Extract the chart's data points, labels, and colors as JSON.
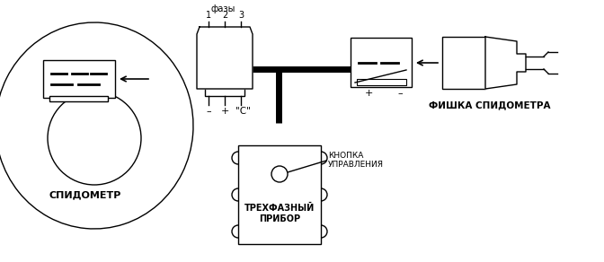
{
  "bg_color": "#ffffff",
  "line_color": "#000000",
  "labels": {
    "speedometer": "СПИДОМЕТР",
    "three_phase_1": "ТРЕХФАЗНЫЙ",
    "three_phase_2": "ПРИБОР",
    "fishka": "ФИШКА СПИДОМЕТРА",
    "phases": "фазы",
    "phase1": "1",
    "phase2": "2",
    "phase3": "3",
    "minus1": "–",
    "plus1": "+",
    "c_label": "\"С\"",
    "plus2": "+",
    "minus2": "–",
    "button_label_1": "КНОПКА",
    "button_label_2": "УПРАВЛЕНИЯ"
  }
}
